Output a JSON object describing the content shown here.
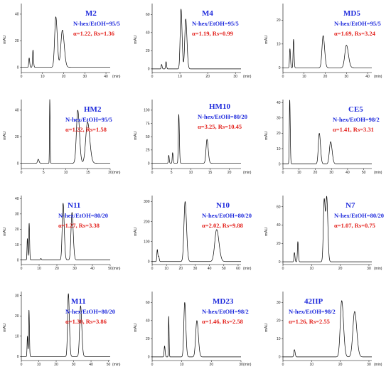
{
  "chart_data": [
    {
      "type": "line",
      "title": "M2",
      "condition": "N-hex/EtOH=95/5",
      "result": "α=1.22, Rs=1.36",
      "ylabel": "mAU",
      "xunit": "(min)",
      "xlim": [
        0,
        42
      ],
      "ylim": [
        -4,
        48
      ],
      "xticks": [
        0,
        10,
        20,
        30,
        40
      ],
      "yticks": [
        0,
        20,
        40
      ],
      "peaks": [
        {
          "t": 3.7,
          "h": 7,
          "w": 0.2
        },
        {
          "t": 5.5,
          "h": 13,
          "w": 0.2
        },
        {
          "t": 16.3,
          "h": 38,
          "w": 0.55
        },
        {
          "t": 19.4,
          "h": 28,
          "w": 0.7
        }
      ]
    },
    {
      "type": "line",
      "title": "M4",
      "condition": "N-hex/EtOH=95/5",
      "result": "α=1.19, Rs=0.99",
      "ylabel": "mAU",
      "xunit": "(min)",
      "xlim": [
        0,
        32
      ],
      "ylim": [
        -4,
        72
      ],
      "xticks": [
        0,
        10,
        20,
        30
      ],
      "yticks": [
        0,
        20,
        40,
        60
      ],
      "peaks": [
        {
          "t": 3.4,
          "h": 5,
          "w": 0.15
        },
        {
          "t": 5.0,
          "h": 8,
          "w": 0.15
        },
        {
          "t": 10.4,
          "h": 66,
          "w": 0.3
        },
        {
          "t": 12.1,
          "h": 55,
          "w": 0.35
        }
      ]
    },
    {
      "type": "line",
      "title": "MD5",
      "condition": "N-hex/EtOH=95/5",
      "result": "α=1.69, Rs=3.24",
      "ylabel": "mAU",
      "xunit": "(min)",
      "xlim": [
        0,
        42
      ],
      "ylim": [
        -2,
        27
      ],
      "xticks": [
        0,
        10,
        20,
        30,
        40
      ],
      "yticks": [
        0,
        10,
        20
      ],
      "peaks": [
        {
          "t": 3.3,
          "h": 8,
          "w": 0.2
        },
        {
          "t": 5.0,
          "h": 12,
          "w": 0.2
        },
        {
          "t": 19.0,
          "h": 13.5,
          "w": 0.55
        },
        {
          "t": 30.0,
          "h": 9.5,
          "w": 0.75
        }
      ]
    },
    {
      "type": "line",
      "title": "HM2",
      "condition": "N-hex/EtOH=95/5",
      "result": "α=1.22, Rs=1.58",
      "ylabel": "mAU",
      "xunit": "(min)",
      "xlim": [
        0,
        20
      ],
      "ylim": [
        -4,
        48
      ],
      "xticks": [
        0,
        5,
        10,
        15,
        20
      ],
      "yticks": [
        0,
        20,
        40
      ],
      "peaks": [
        {
          "t": 3.8,
          "h": 3,
          "w": 0.15
        },
        {
          "t": 6.4,
          "h": 48,
          "w": 0.06
        },
        {
          "t": 12.7,
          "h": 40,
          "w": 0.3
        },
        {
          "t": 14.9,
          "h": 31,
          "w": 0.4
        }
      ]
    },
    {
      "type": "line",
      "title": "HM10",
      "condition": "N-hex/EtOH=80/20",
      "result": "α=3.25, Rs=10.45",
      "ylabel": "mAU",
      "xunit": "(min)",
      "xlim": [
        0,
        23
      ],
      "ylim": [
        -10,
        120
      ],
      "xticks": [
        0,
        5,
        10,
        15,
        20
      ],
      "yticks": [
        0,
        25,
        50,
        75,
        100
      ],
      "peaks": [
        {
          "t": 4.3,
          "h": 15,
          "w": 0.1
        },
        {
          "t": 5.3,
          "h": 20,
          "w": 0.1
        },
        {
          "t": 6.9,
          "h": 92,
          "w": 0.12
        },
        {
          "t": 14.2,
          "h": 45,
          "w": 0.25
        }
      ]
    },
    {
      "type": "line",
      "title": "CE5",
      "condition": "N-hex/EtOH=98/2",
      "result": "α=1.41, Rs=3.31",
      "ylabel": "mAU",
      "xunit": "(min)",
      "xlim": [
        0,
        55
      ],
      "ylim": [
        -3,
        42
      ],
      "xticks": [
        0,
        10,
        20,
        30,
        40,
        50
      ],
      "yticks": [
        0,
        10,
        20,
        30,
        40
      ],
      "peaks": [
        {
          "t": 4.2,
          "h": 42,
          "w": 0.25
        },
        {
          "t": 22.5,
          "h": 20,
          "w": 0.6
        },
        {
          "t": 29.5,
          "h": 14.5,
          "w": 0.75
        }
      ]
    },
    {
      "type": "line",
      "title": "N11",
      "condition": "N-hex/EtOH=80/20",
      "result": "α=1.27, Rs=3.38",
      "ylabel": "mAU",
      "xunit": "(min)",
      "xlim": [
        0,
        50
      ],
      "ylim": [
        -3,
        42
      ],
      "xticks": [
        0,
        10,
        20,
        30,
        40,
        50
      ],
      "yticks": [
        0,
        10,
        20,
        30,
        40
      ],
      "peaks": [
        {
          "t": 3.4,
          "h": 14,
          "w": 0.2
        },
        {
          "t": 4.4,
          "h": 24,
          "w": 0.2
        },
        {
          "t": 11.0,
          "h": 1,
          "w": 0.2
        },
        {
          "t": 23.5,
          "h": 37,
          "w": 0.5
        },
        {
          "t": 28.5,
          "h": 31,
          "w": 0.55
        }
      ]
    },
    {
      "type": "line",
      "title": "N10",
      "condition": "N-hex/EtOH=80/20",
      "result": "α=2.02, Rs=9.88",
      "ylabel": "mAU",
      "xunit": "(min)",
      "xlim": [
        0,
        62
      ],
      "ylim": [
        -15,
        330
      ],
      "xticks": [
        0,
        10,
        20,
        30,
        40,
        50,
        60
      ],
      "yticks": [
        0,
        100,
        200,
        300
      ],
      "peaks": [
        {
          "t": 3.6,
          "h": 60,
          "w": 0.3
        },
        {
          "t": 4.6,
          "h": 25,
          "w": 0.3
        },
        {
          "t": 23.0,
          "h": 300,
          "w": 0.8
        },
        {
          "t": 45.0,
          "h": 160,
          "w": 1.3
        }
      ]
    },
    {
      "type": "line",
      "title": "N7",
      "condition": "N-hex/EtOH=80/20",
      "result": "α=1.07, Rs=0.75",
      "ylabel": "mAU",
      "xunit": "(min)",
      "xlim": [
        0,
        31
      ],
      "ylim": [
        -3,
        72
      ],
      "xticks": [
        0,
        10,
        20,
        30
      ],
      "yticks": [
        0,
        20,
        40,
        60
      ],
      "peaks": [
        {
          "t": 4.0,
          "h": 10,
          "w": 0.15
        },
        {
          "t": 5.2,
          "h": 22,
          "w": 0.15
        },
        {
          "t": 14.4,
          "h": 68,
          "w": 0.3
        },
        {
          "t": 15.3,
          "h": 67,
          "w": 0.3
        }
      ]
    },
    {
      "type": "line",
      "title": "M11",
      "condition": "N-hex/EtOH=80/20",
      "result": "α=1.30, Rs=3.86",
      "ylabel": "mAU",
      "xunit": "(min)",
      "xlim": [
        0,
        51
      ],
      "ylim": [
        -2,
        32
      ],
      "xticks": [
        0,
        10,
        20,
        30,
        40,
        50
      ],
      "yticks": [
        0,
        10,
        20,
        30
      ],
      "peaks": [
        {
          "t": 3.5,
          "h": 10,
          "w": 0.2
        },
        {
          "t": 4.4,
          "h": 23,
          "w": 0.2
        },
        {
          "t": 27.0,
          "h": 31,
          "w": 0.45
        },
        {
          "t": 34.0,
          "h": 25,
          "w": 0.55
        }
      ]
    },
    {
      "type": "line",
      "title": "MD23",
      "condition": "N-hex/EtOH=98/2",
      "result": "α=1.46, Rs=2.58",
      "ylabel": "mAU",
      "xunit": "(min)",
      "xlim": [
        0,
        30
      ],
      "ylim": [
        -4,
        72
      ],
      "xticks": [
        0,
        10,
        20,
        30
      ],
      "yticks": [
        0,
        20,
        40,
        60
      ],
      "peaks": [
        {
          "t": 4.2,
          "h": 12,
          "w": 0.15
        },
        {
          "t": 5.6,
          "h": 45,
          "w": 0.1
        },
        {
          "t": 11.0,
          "h": 60,
          "w": 0.3
        },
        {
          "t": 15.1,
          "h": 40,
          "w": 0.4
        }
      ]
    },
    {
      "type": "line",
      "title": "42IIP",
      "condition": "N-hex/EtOH=98/2",
      "result": "α=1.26, Rs=2.55",
      "ylabel": "mAU",
      "xunit": "(min)",
      "xlim": [
        0,
        31
      ],
      "ylim": [
        -2,
        36
      ],
      "xticks": [
        0,
        10,
        20,
        30
      ],
      "yticks": [
        0,
        10,
        20,
        30
      ],
      "peaks": [
        {
          "t": 4.0,
          "h": 4,
          "w": 0.2
        },
        {
          "t": 20.5,
          "h": 31,
          "w": 0.5
        },
        {
          "t": 25.0,
          "h": 25,
          "w": 0.6
        }
      ]
    }
  ]
}
